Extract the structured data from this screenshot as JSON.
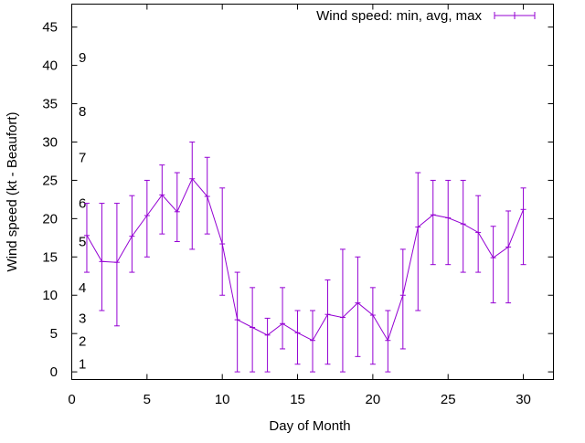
{
  "colors": {
    "series": "#9400d3",
    "axis": "#000000",
    "background": "#ffffff"
  },
  "chart_data": {
    "type": "line",
    "title": "",
    "xlabel": "Day of Month",
    "ylabel": "Wind speed (kt - Beaufort)",
    "xlim": [
      0,
      32
    ],
    "ylim": [
      -1,
      48
    ],
    "xticks": [
      0,
      5,
      10,
      15,
      20,
      25,
      30
    ],
    "yticks": [
      0,
      5,
      10,
      15,
      20,
      25,
      30,
      35,
      40,
      45
    ],
    "legend": {
      "label": "Wind speed: min, avg, max",
      "position": "top-right"
    },
    "beaufort_labels": [
      {
        "label": "1",
        "value": 1
      },
      {
        "label": "2",
        "value": 4
      },
      {
        "label": "3",
        "value": 7
      },
      {
        "label": "4",
        "value": 11
      },
      {
        "label": "5",
        "value": 17
      },
      {
        "label": "6",
        "value": 22
      },
      {
        "label": "7",
        "value": 28
      },
      {
        "label": "8",
        "value": 34
      },
      {
        "label": "9",
        "value": 41
      }
    ],
    "series": [
      {
        "name": "Wind speed: min, avg, max",
        "x": [
          1,
          2,
          3,
          4,
          5,
          6,
          7,
          8,
          9,
          10,
          11,
          12,
          13,
          14,
          15,
          16,
          17,
          18,
          19,
          20,
          21,
          22,
          23,
          24,
          25,
          26,
          27,
          28,
          29,
          30
        ],
        "avg": [
          17.8,
          14.4,
          14.3,
          17.7,
          20.4,
          23.1,
          20.9,
          25.2,
          22.9,
          16.7,
          6.8,
          5.8,
          4.8,
          6.3,
          5.1,
          4.1,
          7.5,
          7.1,
          9.0,
          7.4,
          4.1,
          10.0,
          18.9,
          20.5,
          20.1,
          19.3,
          18.2,
          14.9,
          16.3,
          21.2
        ],
        "min": [
          13,
          8,
          6,
          13,
          15,
          18,
          17,
          16,
          18,
          10,
          0,
          0,
          0,
          3,
          1,
          0,
          1,
          0,
          2,
          1,
          0,
          3,
          8,
          14,
          14,
          13,
          13,
          9,
          9,
          14
        ],
        "max": [
          22,
          22,
          22,
          23,
          25,
          27,
          26,
          30,
          28,
          24,
          13,
          11,
          7,
          11,
          8,
          8,
          12,
          16,
          15,
          11,
          8,
          16,
          26,
          25,
          25,
          25,
          23,
          19,
          21,
          24
        ]
      }
    ]
  }
}
